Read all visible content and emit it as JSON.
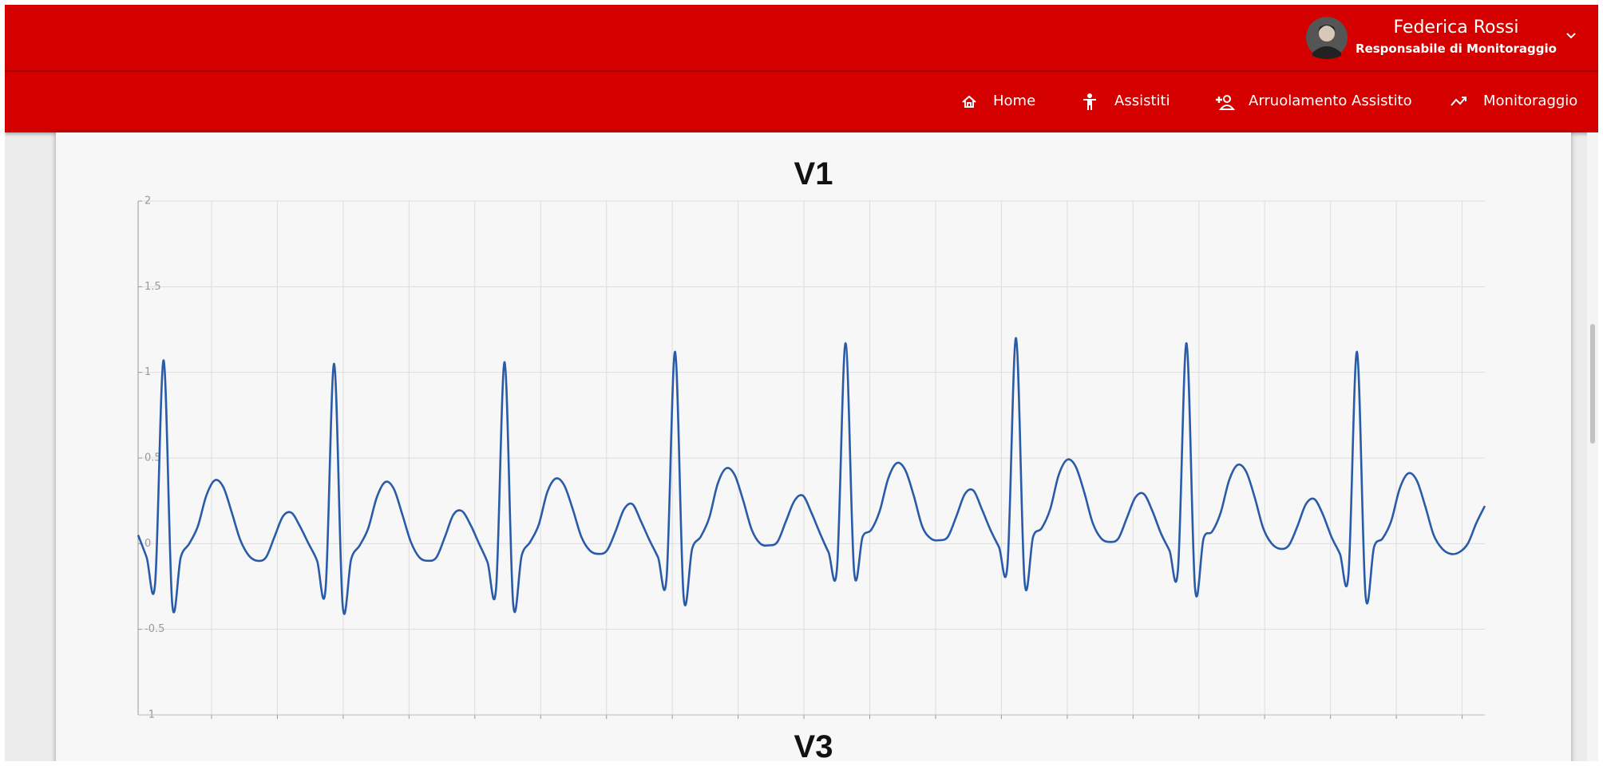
{
  "header": {
    "user_name": "Federica Rossi",
    "user_role": "Responsabile di Monitoraggio",
    "nav": [
      {
        "label": "Home"
      },
      {
        "label": "Assistiti"
      },
      {
        "label": "Arruolamento Assistito"
      },
      {
        "label": "Monitoraggio"
      }
    ]
  },
  "chart_data": {
    "type": "line",
    "title": "V1",
    "color": "#2a5ba8",
    "values": [
      0.05,
      -0.08,
      -0.23,
      1.07,
      -0.35,
      -0.08,
      0.0,
      0.1,
      0.28,
      0.37,
      0.33,
      0.18,
      0.02,
      -0.07,
      -0.1,
      -0.08,
      0.04,
      0.16,
      0.18,
      0.1,
      0.0,
      -0.1,
      -0.26,
      1.05,
      -0.36,
      -0.09,
      -0.01,
      0.09,
      0.27,
      0.36,
      0.32,
      0.17,
      0.01,
      -0.08,
      -0.1,
      -0.08,
      0.04,
      0.17,
      0.19,
      0.11,
      0.0,
      -0.11,
      -0.26,
      1.06,
      -0.35,
      -0.07,
      0.01,
      0.11,
      0.3,
      0.38,
      0.34,
      0.2,
      0.04,
      -0.04,
      -0.06,
      -0.04,
      0.07,
      0.2,
      0.23,
      0.13,
      0.02,
      -0.08,
      -0.2,
      1.12,
      -0.31,
      -0.03,
      0.04,
      0.15,
      0.35,
      0.44,
      0.4,
      0.25,
      0.08,
      0.0,
      -0.01,
      0.01,
      0.13,
      0.25,
      0.28,
      0.18,
      0.06,
      -0.05,
      -0.14,
      1.17,
      -0.16,
      0.04,
      0.08,
      0.19,
      0.38,
      0.47,
      0.43,
      0.28,
      0.1,
      0.03,
      0.02,
      0.04,
      0.16,
      0.29,
      0.31,
      0.2,
      0.08,
      -0.02,
      -0.12,
      1.2,
      -0.22,
      0.04,
      0.09,
      0.2,
      0.4,
      0.49,
      0.45,
      0.3,
      0.12,
      0.03,
      0.01,
      0.03,
      0.15,
      0.27,
      0.29,
      0.19,
      0.06,
      -0.04,
      -0.15,
      1.17,
      -0.26,
      0.03,
      0.07,
      0.18,
      0.37,
      0.46,
      0.42,
      0.27,
      0.09,
      0.0,
      -0.03,
      -0.01,
      0.1,
      0.23,
      0.26,
      0.17,
      0.04,
      -0.06,
      -0.18,
      1.12,
      -0.3,
      -0.02,
      0.03,
      0.13,
      0.32,
      0.41,
      0.37,
      0.22,
      0.05,
      -0.03,
      -0.06,
      -0.05,
      0.0,
      0.12,
      0.22
    ],
    "ylim": [
      -1,
      2
    ],
    "yticks": [
      -1,
      -0.5,
      0,
      0.5,
      1,
      1.5,
      2
    ],
    "grid": true
  },
  "next_chart_title": "V3"
}
